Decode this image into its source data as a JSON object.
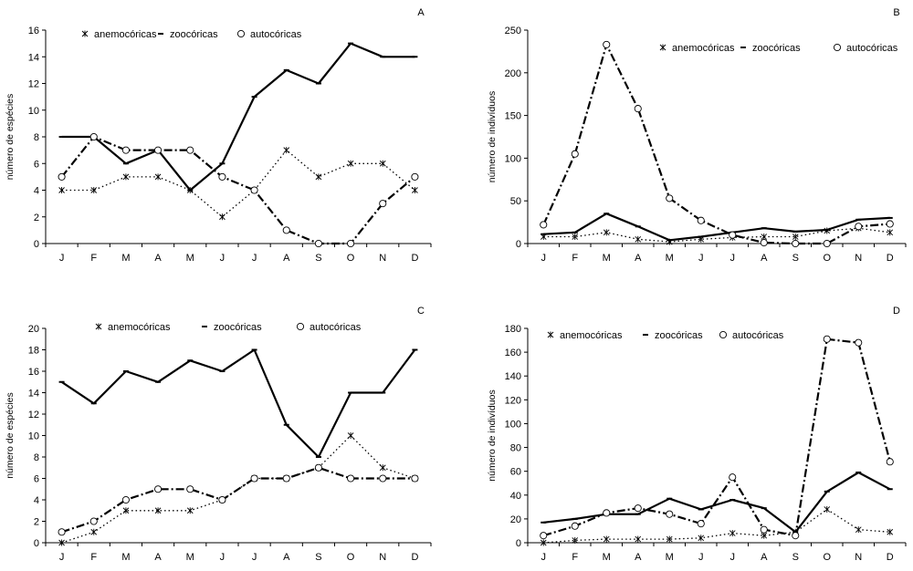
{
  "chart_data": [
    {
      "panel": "A",
      "type": "line",
      "categories": [
        "J",
        "F",
        "M",
        "A",
        "M",
        "J",
        "J",
        "A",
        "S",
        "O",
        "N",
        "D"
      ],
      "ylabel": "número de espécies",
      "ylim": [
        0,
        16
      ],
      "yticks": [
        0,
        2,
        4,
        6,
        8,
        10,
        12,
        14,
        16
      ],
      "legend_position": "top",
      "series": [
        {
          "name": "anemocóricas",
          "style": "dot",
          "marker": "star",
          "values": [
            4,
            4,
            5,
            5,
            4,
            2,
            4,
            7,
            5,
            6,
            6,
            4
          ]
        },
        {
          "name": "zoocóricas",
          "style": "solid",
          "marker": "dash",
          "values": [
            8,
            8,
            6,
            7,
            4,
            6,
            11,
            13,
            12,
            15,
            14,
            14
          ]
        },
        {
          "name": "autocóricas",
          "style": "dashdot",
          "marker": "circle",
          "values": [
            5,
            8,
            7,
            7,
            7,
            5,
            4,
            1,
            0,
            0,
            3,
            5
          ]
        }
      ]
    },
    {
      "panel": "B",
      "type": "line",
      "categories": [
        "J",
        "F",
        "M",
        "A",
        "M",
        "J",
        "J",
        "A",
        "S",
        "O",
        "N",
        "D"
      ],
      "ylabel": "número de indivíduos",
      "ylim": [
        0,
        250
      ],
      "yticks": [
        0,
        50,
        100,
        150,
        200,
        250
      ],
      "legend_position": "top-right",
      "series": [
        {
          "name": "anemocóricas",
          "style": "dot",
          "marker": "star",
          "values": [
            8,
            8,
            13,
            5,
            2,
            5,
            7,
            8,
            8,
            15,
            18,
            13
          ]
        },
        {
          "name": "zoocóricas",
          "style": "solid",
          "marker": "dash",
          "values": [
            11,
            13,
            35,
            20,
            4,
            8,
            13,
            18,
            14,
            16,
            28,
            30
          ]
        },
        {
          "name": "autocóricas",
          "style": "dashdot",
          "marker": "circle",
          "values": [
            22,
            105,
            233,
            158,
            53,
            27,
            10,
            1,
            0,
            0,
            20,
            23
          ]
        }
      ]
    },
    {
      "panel": "C",
      "type": "line",
      "categories": [
        "J",
        "F",
        "M",
        "A",
        "M",
        "J",
        "J",
        "A",
        "S",
        "O",
        "N",
        "D"
      ],
      "ylabel": "número de espécies",
      "ylim": [
        0,
        20
      ],
      "yticks": [
        0,
        2,
        4,
        6,
        8,
        10,
        12,
        14,
        16,
        18,
        20
      ],
      "legend_position": "top",
      "series": [
        {
          "name": "anemocóricas",
          "style": "dot",
          "marker": "star",
          "values": [
            0,
            1,
            3,
            3,
            3,
            4,
            6,
            6,
            7,
            10,
            7,
            6
          ]
        },
        {
          "name": "zoocóricas",
          "style": "solid",
          "marker": "dash",
          "values": [
            15,
            13,
            16,
            15,
            17,
            16,
            18,
            11,
            8,
            14,
            14,
            18
          ]
        },
        {
          "name": "autocóricas",
          "style": "dashdot",
          "marker": "circle",
          "values": [
            1,
            2,
            4,
            5,
            5,
            4,
            6,
            6,
            7,
            6,
            6,
            6
          ]
        }
      ]
    },
    {
      "panel": "D",
      "type": "line",
      "categories": [
        "J",
        "F",
        "M",
        "A",
        "M",
        "J",
        "J",
        "A",
        "S",
        "O",
        "N",
        "D"
      ],
      "ylabel": "número de indivíduos",
      "ylim": [
        0,
        180
      ],
      "yticks": [
        0,
        20,
        40,
        60,
        80,
        100,
        120,
        140,
        160,
        180
      ],
      "legend_position": "top",
      "series": [
        {
          "name": "anemocóricas",
          "style": "dot",
          "marker": "star",
          "values": [
            0,
            2,
            3,
            3,
            3,
            4,
            8,
            6,
            9,
            28,
            11,
            9
          ]
        },
        {
          "name": "zoocóricas",
          "style": "solid",
          "marker": "dash",
          "values": [
            17,
            20,
            24,
            24,
            37,
            28,
            36,
            29,
            9,
            43,
            59,
            45
          ]
        },
        {
          "name": "autocóricas",
          "style": "dashdot",
          "marker": "circle",
          "values": [
            6,
            14,
            25,
            29,
            24,
            16,
            55,
            11,
            6,
            171,
            168,
            68
          ]
        }
      ]
    }
  ]
}
